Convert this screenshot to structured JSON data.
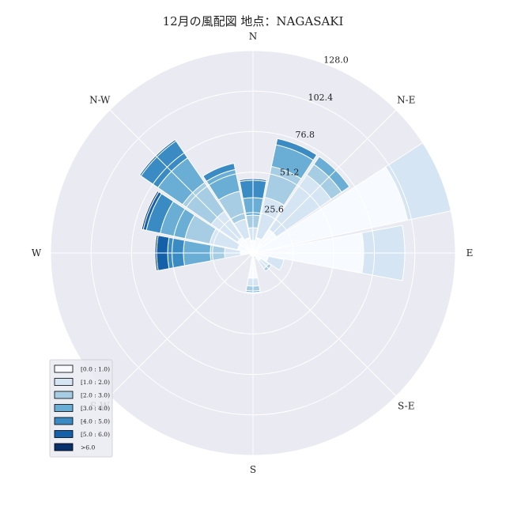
{
  "chart_data": {
    "type": "windrose",
    "title": "12月の風配図 地点：NAGASAKI",
    "direction_labels": [
      "N",
      "N-E",
      "E",
      "S-E",
      "S",
      "S-W",
      "W",
      "N-W"
    ],
    "radial_ticks": [
      25.6,
      51.2,
      76.8,
      102.4,
      128.0
    ],
    "radial_max": 128.0,
    "legend_location": "lower-left",
    "bins": [
      {
        "label": "[0.0 : 1.0)",
        "color": "#f7fbff"
      },
      {
        "label": "[1.0 : 2.0)",
        "color": "#d5e5f4"
      },
      {
        "label": "[2.0 : 3.0)",
        "color": "#a6cde4"
      },
      {
        "label": "[3.0 : 4.0)",
        "color": "#6aaed6"
      },
      {
        "label": "[4.0 : 5.0)",
        "color": "#3a8bc3"
      },
      {
        "label": "[5.0 : 6.0)",
        "color": "#1561a9"
      },
      {
        "label": ">6.0",
        "color": "#08306b"
      }
    ],
    "sectors": [
      {
        "direction": 0,
        "cumulative": [
          8,
          16,
          24,
          35,
          46,
          47,
          47
        ]
      },
      {
        "direction": 22.5,
        "cumulative": [
          10,
          36,
          56,
          70,
          74,
          74,
          74
        ]
      },
      {
        "direction": 45,
        "cumulative": [
          18,
          60,
          68,
          74,
          74,
          74,
          74
        ]
      },
      {
        "direction": 67.5,
        "cumulative": [
          100,
          128,
          128,
          128,
          128,
          128,
          128
        ]
      },
      {
        "direction": 90,
        "cumulative": [
          70,
          96,
          96,
          96,
          96,
          96,
          96
        ]
      },
      {
        "direction": 112.5,
        "cumulative": [
          10,
          20,
          20,
          20,
          20,
          20,
          20
        ]
      },
      {
        "direction": 135,
        "cumulative": [
          6,
          12,
          14,
          14,
          14,
          14,
          14
        ]
      },
      {
        "direction": 157.5,
        "cumulative": [
          2,
          4,
          4,
          4,
          4,
          4,
          4
        ]
      },
      {
        "direction": 180,
        "cumulative": [
          16,
          21,
          24,
          25,
          25,
          25,
          25
        ]
      },
      {
        "direction": 202.5,
        "cumulative": [
          1,
          2,
          2,
          2,
          2,
          2,
          2
        ]
      },
      {
        "direction": 225,
        "cumulative": [
          1,
          2,
          2,
          2,
          2,
          2,
          2
        ]
      },
      {
        "direction": 247.5,
        "cumulative": [
          1,
          2,
          2,
          2,
          2,
          2,
          2
        ]
      },
      {
        "direction": 270,
        "cumulative": [
          8,
          18,
          27,
          44,
          54,
          61,
          62
        ]
      },
      {
        "direction": 292.5,
        "cumulative": [
          10,
          28,
          44,
          60,
          69,
          71,
          72
        ]
      },
      {
        "direction": 315,
        "cumulative": [
          12,
          32,
          54,
          73,
          86,
          87,
          87
        ]
      },
      {
        "direction": 337.5,
        "cumulative": [
          10,
          22,
          40,
          54,
          58,
          58,
          58
        ]
      }
    ]
  }
}
